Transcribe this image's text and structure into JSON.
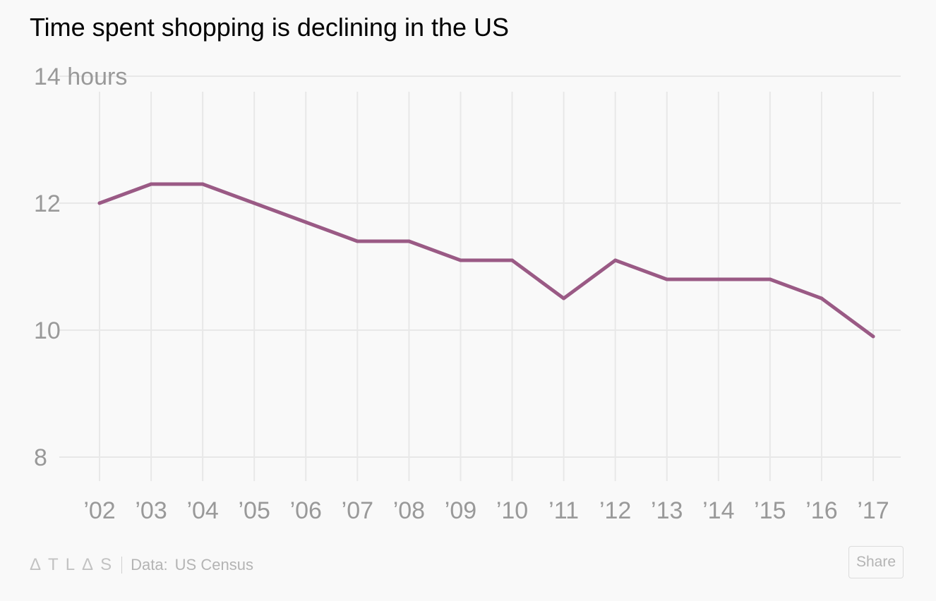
{
  "chart_data": {
    "type": "line",
    "title": "Time spent shopping is declining in the US",
    "x": [
      "’02",
      "’03",
      "’04",
      "’05",
      "’06",
      "’07",
      "’08",
      "’09",
      "’10",
      "’11",
      "’12",
      "’13",
      "’14",
      "’15",
      "’16",
      "’17"
    ],
    "series": [
      {
        "name": "Hours",
        "values": [
          12.0,
          12.3,
          12.3,
          12.0,
          11.7,
          11.4,
          11.4,
          11.1,
          11.1,
          10.5,
          11.1,
          10.8,
          10.8,
          10.8,
          10.5,
          9.9
        ],
        "color": "#9a5a85"
      }
    ],
    "ylim": [
      8,
      14
    ],
    "yticks": [
      8,
      10,
      12,
      14
    ],
    "ytick_labels": [
      "8",
      "10",
      "12",
      "14 hours"
    ],
    "grid": true,
    "xlabel": "",
    "ylabel": ""
  },
  "footer": {
    "logo": "ΔTLΔS",
    "source_label": "Data:",
    "source": "US Census"
  },
  "share_label": "Share",
  "colors": {
    "line": "#9a5a85",
    "grid": "#e8e8e8",
    "tick_text": "#999999",
    "background": "#f9f9f9"
  }
}
